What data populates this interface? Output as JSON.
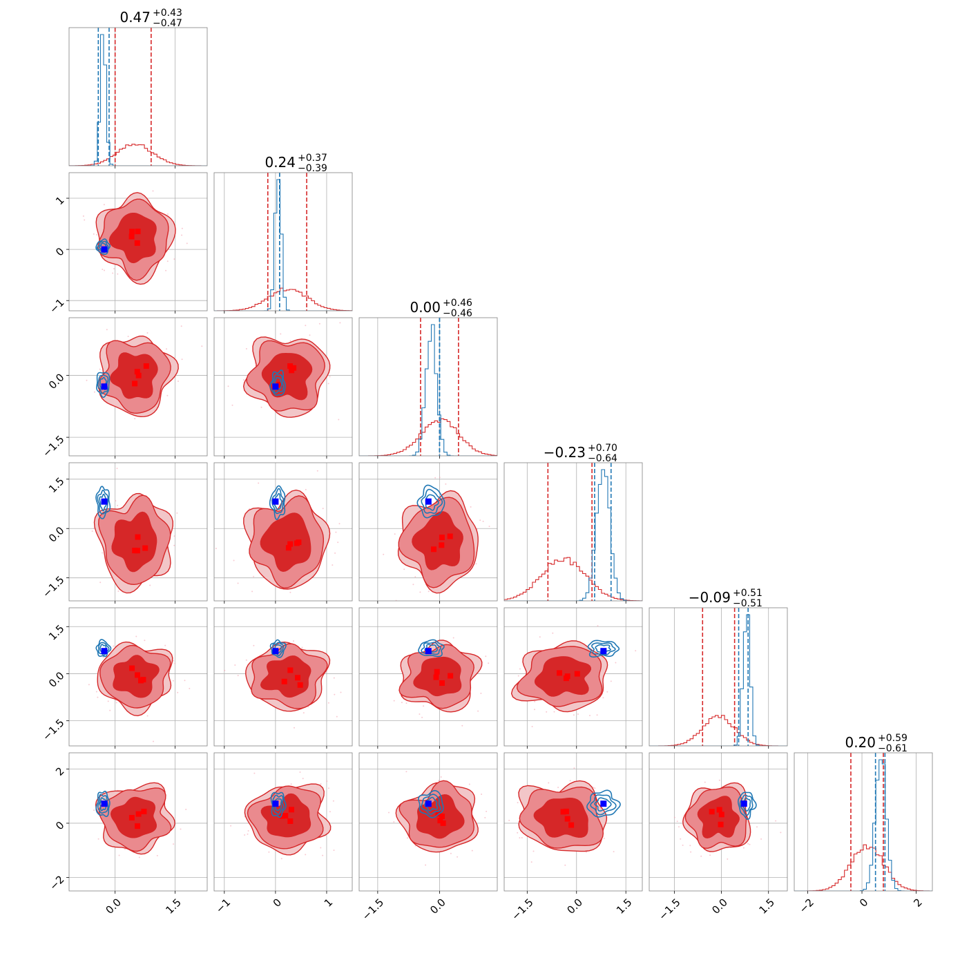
{
  "chart_data": {
    "type": "corner",
    "dimensions": 6,
    "titles": [
      {
        "value": "0.47",
        "plus": "+0.43",
        "minus": "−0.47"
      },
      {
        "value": "0.24",
        "plus": "+0.37",
        "minus": "−0.39"
      },
      {
        "value": "0.00",
        "plus": "+0.46",
        "minus": "−0.46"
      },
      {
        "value": "−0.23",
        "plus": "+0.70",
        "minus": "−0.64"
      },
      {
        "value": "−0.09",
        "plus": "+0.51",
        "minus": "−0.51"
      },
      {
        "value": "0.20",
        "plus": "+0.59",
        "minus": "−0.61"
      }
    ],
    "axes": [
      {
        "range": [
          -1.15,
          2.3
        ],
        "ticks": [
          0.0,
          1.5
        ],
        "tick_labels": [
          "0.0",
          "1.5"
        ]
      },
      {
        "range": [
          -1.2,
          1.5
        ],
        "ticks": [
          -1,
          0,
          1
        ],
        "tick_labels": [
          "−1",
          "0",
          "1"
        ]
      },
      {
        "range": [
          -1.95,
          1.4
        ],
        "ticks": [
          -1.5,
          0.0
        ],
        "tick_labels": [
          "−1.5",
          "0.0"
        ]
      },
      {
        "range": [
          -2.2,
          2.0
        ],
        "ticks": [
          -1.5,
          0.0,
          1.5
        ],
        "tick_labels": [
          "−1.5",
          "0.0",
          "1.5"
        ]
      },
      {
        "range": [
          -2.3,
          2.1
        ],
        "ticks": [
          -1.5,
          0.0,
          1.5
        ],
        "tick_labels": [
          "−1.5",
          "0.0",
          "1.5"
        ]
      },
      {
        "range": [
          -2.5,
          2.6
        ],
        "ticks": [
          -2,
          0,
          2
        ],
        "tick_labels": [
          "−2",
          "0",
          "2"
        ]
      }
    ],
    "series": [
      {
        "color": "#d62728",
        "mean": [
          0.5,
          0.24,
          0.0,
          -0.4,
          -0.09,
          0.2
        ],
        "std": [
          0.45,
          0.38,
          0.46,
          0.67,
          0.51,
          0.6
        ],
        "quantiles": [
          [
            0.0,
            0.9
          ],
          [
            -0.15,
            0.61
          ],
          [
            -0.46,
            0.46
          ],
          [
            -0.87,
            0.47
          ],
          [
            -0.6,
            0.42
          ],
          [
            -0.41,
            0.79
          ]
        ],
        "markers": [
          [
            0.65,
            0.4
          ],
          [
            0.55,
            0.2
          ],
          [
            0.55,
            0.2
          ],
          [
            0.55,
            0.2
          ],
          [
            0.55,
            0.2
          ]
        ]
      },
      {
        "color": "#1f77b4",
        "mean": [
          -0.3,
          0.05,
          -0.2,
          0.8,
          0.8,
          0.7
        ],
        "std": [
          0.07,
          0.06,
          0.13,
          0.2,
          0.11,
          0.2
        ],
        "quantiles": [
          [
            -0.42,
            -0.15
          ],
          [
            0.08,
            0.08
          ],
          [
            0.0,
            0.0
          ],
          [
            0.55,
            1.05
          ],
          [
            0.55,
            0.85
          ],
          [
            0.5,
            0.85
          ]
        ]
      }
    ],
    "truth": {
      "color": "#0000ff",
      "values": [
        -0.27,
        0.0,
        -0.27,
        0.82,
        0.72,
        0.72
      ]
    },
    "grid": true
  }
}
